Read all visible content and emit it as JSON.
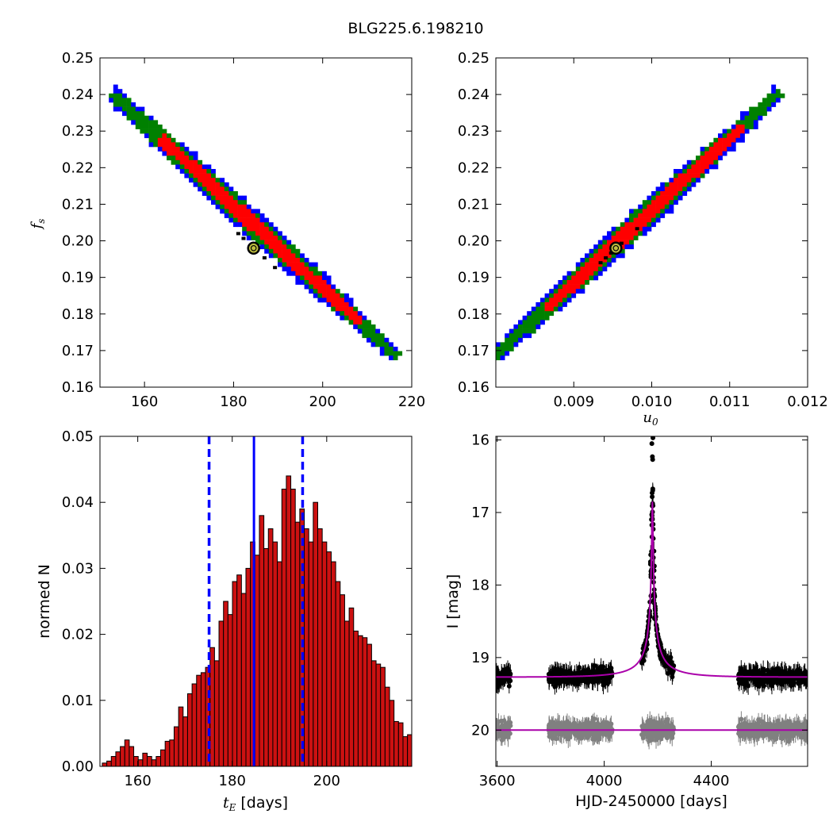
{
  "figure": {
    "title": "BLG225.6.198210"
  },
  "colors": {
    "sigma1": "#ff0000",
    "sigma2": "#008000",
    "sigma3": "#0000ff",
    "best_point": "#000000",
    "marker_face": "#bfbf3f",
    "model": "#aa00aa",
    "residual": "#808080",
    "hist_bar": "#cc1111"
  },
  "chart_data": [
    {
      "id": "ul",
      "type": "heatmap",
      "title": "",
      "xlabel": "",
      "ylabel": "f",
      "ylabel_sub": "s",
      "xlim": [
        150,
        220
      ],
      "ylim": [
        0.16,
        0.25
      ],
      "xticks": [
        160,
        180,
        200,
        220
      ],
      "xtick_labels": [
        "160",
        "180",
        "200",
        "220"
      ],
      "yticks": [
        0.16,
        0.17,
        0.18,
        0.19,
        0.2,
        0.21,
        0.22,
        0.23,
        0.24,
        0.25
      ],
      "ytick_labels": [
        "0.16",
        "0.17",
        "0.18",
        "0.19",
        "0.20",
        "0.21",
        "0.22",
        "0.23",
        "0.24",
        "0.25"
      ],
      "ridge": [
        [
          153,
          0.24
        ],
        [
          216,
          0.169
        ]
      ],
      "best_fit": [
        184.5,
        0.198
      ],
      "grid": false
    },
    {
      "id": "ur",
      "type": "heatmap",
      "title": "",
      "xlabel": "u",
      "xlabel_sub": "0",
      "ylabel": "",
      "xlim": [
        0.008,
        0.012
      ],
      "ylim": [
        0.16,
        0.25
      ],
      "xticks": [
        0.009,
        0.01,
        0.011,
        0.012
      ],
      "xtick_labels": [
        "0.009",
        "0.010",
        "0.011",
        "0.012"
      ],
      "yticks": [
        0.16,
        0.17,
        0.18,
        0.19,
        0.2,
        0.21,
        0.22,
        0.23,
        0.24,
        0.25
      ],
      "ytick_labels": [
        "0.16",
        "0.17",
        "0.18",
        "0.19",
        "0.20",
        "0.21",
        "0.22",
        "0.23",
        "0.24",
        "0.25"
      ],
      "ridge": [
        [
          0.00802,
          0.169
        ],
        [
          0.0116,
          0.24
        ]
      ],
      "best_fit": [
        0.00954,
        0.198
      ],
      "grid": false
    },
    {
      "id": "ll",
      "type": "bar",
      "title": "",
      "xlabel": "t",
      "xlabel_sub": "E",
      "xlabel_suffix": " [days]",
      "ylabel": "normed N",
      "xlim": [
        152,
        218
      ],
      "ylim": [
        0,
        0.05
      ],
      "xticks": [
        160,
        180,
        200
      ],
      "xtick_labels": [
        "160",
        "180",
        "200"
      ],
      "yticks": [
        0,
        0.01,
        0.02,
        0.03,
        0.04,
        0.05
      ],
      "ytick_labels": [
        "0.00",
        "0.01",
        "0.02",
        "0.03",
        "0.04",
        "0.05"
      ],
      "bin_start": 152.5,
      "bin_width": 0.95,
      "values": [
        0.0005,
        0.0008,
        0.0015,
        0.0022,
        0.003,
        0.004,
        0.003,
        0.0015,
        0.001,
        0.002,
        0.0015,
        0.001,
        0.0015,
        0.0025,
        0.0038,
        0.004,
        0.006,
        0.009,
        0.0075,
        0.011,
        0.0125,
        0.0138,
        0.0142,
        0.015,
        0.018,
        0.016,
        0.022,
        0.025,
        0.023,
        0.028,
        0.029,
        0.0262,
        0.03,
        0.034,
        0.032,
        0.038,
        0.033,
        0.036,
        0.034,
        0.031,
        0.042,
        0.044,
        0.042,
        0.037,
        0.039,
        0.036,
        0.034,
        0.04,
        0.036,
        0.034,
        0.0325,
        0.031,
        0.028,
        0.026,
        0.022,
        0.024,
        0.0205,
        0.0198,
        0.0195,
        0.0185,
        0.016,
        0.0155,
        0.015,
        0.012,
        0.01,
        0.0068,
        0.0066,
        0.0045,
        0.0048,
        0.004,
        0.0041,
        0.004,
        0.0042,
        0.0058,
        0.0048,
        0.0055,
        0.0038,
        0.003,
        0.002,
        0.0015,
        0.0005,
        0.0003,
        0.0002,
        0.0001
      ],
      "median": 184.6,
      "sigma_lo": 175.1,
      "sigma_hi": 194.9,
      "grid": false
    },
    {
      "id": "lr",
      "type": "scatter",
      "title": "",
      "xlabel": "HJD-2450000 [days]",
      "ylabel": "I [mag]",
      "xlim": [
        3595,
        4760
      ],
      "ylim": [
        20.5,
        15.95
      ],
      "y_inverted": true,
      "xticks": [
        3600,
        4000,
        4400
      ],
      "xtick_labels": [
        "3600",
        "4000",
        "4400"
      ],
      "yticks": [
        16,
        17,
        18,
        19,
        20
      ],
      "ytick_labels": [
        "16",
        "17",
        "18",
        "19",
        "20"
      ],
      "baseline": 19.27,
      "residual_baseline": 20.0,
      "peak_time": 4180,
      "peak_mag": 16.85,
      "t_E": 184.6,
      "u0": 0.0095,
      "observing_seasons": [
        [
          3595,
          3650
        ],
        [
          3790,
          4030
        ],
        [
          4140,
          4260
        ],
        [
          4500,
          4760
        ]
      ],
      "grid": false
    }
  ]
}
